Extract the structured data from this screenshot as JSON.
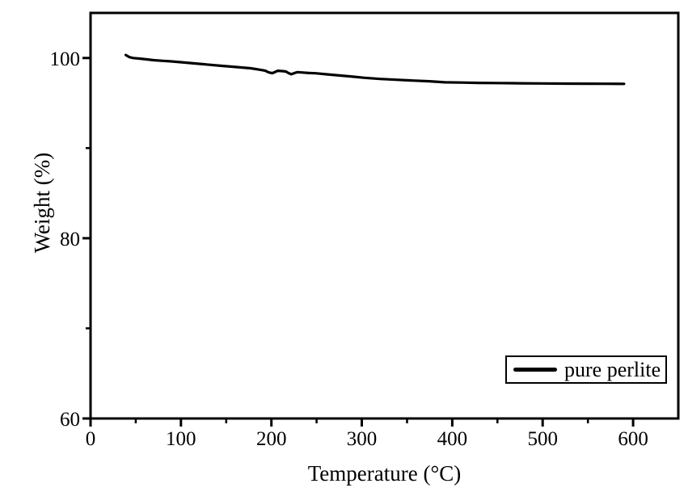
{
  "page": {
    "background": "#ffffff",
    "foreground": "#000000"
  },
  "chart_data": {
    "type": "line",
    "title": "",
    "xlabel": "Temperature (°C)",
    "ylabel": "Weight (%)",
    "xlim": [
      0,
      650
    ],
    "ylim": [
      60,
      105
    ],
    "x_major_ticks": [
      0,
      100,
      200,
      300,
      400,
      500,
      600
    ],
    "x_minor_ticks": [
      50,
      150,
      250,
      350,
      450,
      550
    ],
    "y_major_ticks": [
      60,
      80,
      100
    ],
    "y_minor_ticks": [
      70,
      90
    ],
    "grid": false,
    "axis_color": "#000000",
    "legend": {
      "position": "lower-right",
      "entries": [
        {
          "label": "pure perlite",
          "color": "#000000"
        }
      ]
    },
    "series": [
      {
        "name": "pure perlite",
        "color": "#000000",
        "x": [
          39,
          43,
          47,
          55,
          63,
          70,
          80,
          88,
          100,
          115,
          128,
          145,
          160,
          177,
          186,
          193,
          197,
          201,
          204,
          207,
          212,
          216,
          219,
          222,
          226,
          229,
          235,
          242,
          249,
          260,
          275,
          290,
          303,
          320,
          340,
          356,
          375,
          392,
          410,
          430,
          450,
          475,
          500,
          525,
          550,
          570,
          590
        ],
        "y": [
          100.33,
          100.1,
          100.0,
          99.93,
          99.84,
          99.76,
          99.68,
          99.63,
          99.53,
          99.4,
          99.28,
          99.13,
          99.0,
          98.86,
          98.72,
          98.6,
          98.4,
          98.31,
          98.45,
          98.58,
          98.55,
          98.5,
          98.32,
          98.2,
          98.35,
          98.43,
          98.38,
          98.33,
          98.3,
          98.2,
          98.06,
          97.93,
          97.8,
          97.68,
          97.58,
          97.5,
          97.42,
          97.3,
          97.27,
          97.24,
          97.22,
          97.19,
          97.17,
          97.16,
          97.15,
          97.14,
          97.13
        ]
      }
    ]
  }
}
